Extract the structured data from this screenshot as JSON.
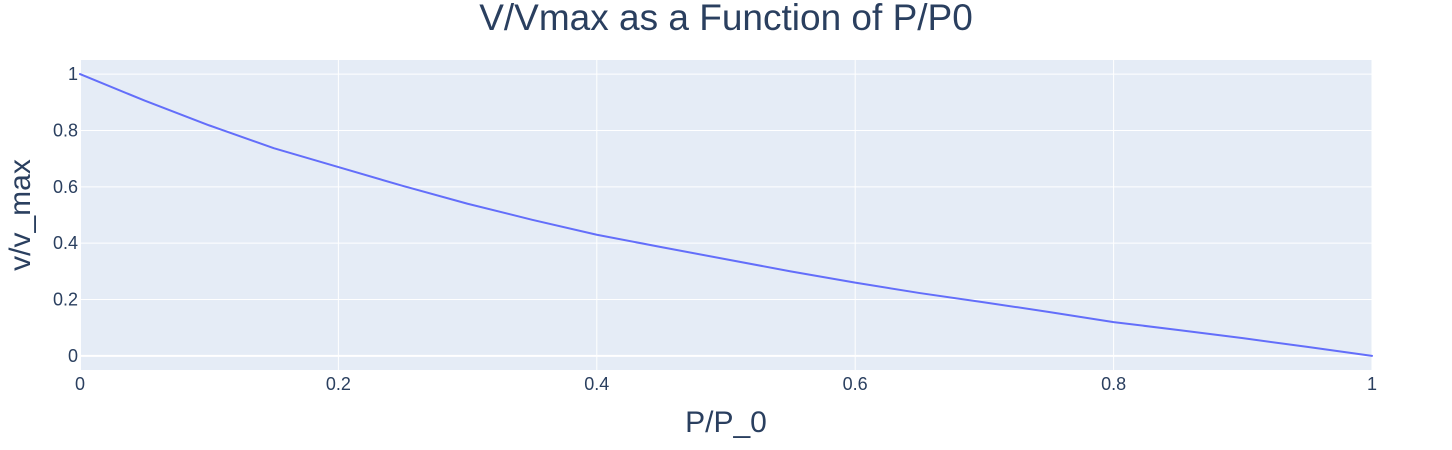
{
  "chart_data": {
    "type": "line",
    "title": "V/Vmax as a Function of P/P0",
    "xlabel": "P/P_0",
    "ylabel": "v/v_max",
    "xlim": [
      0,
      1
    ],
    "ylim": [
      -0.05,
      1.05
    ],
    "x_ticks": [
      0,
      0.2,
      0.4,
      0.6,
      0.8,
      1
    ],
    "x_tick_labels": [
      "0",
      "0.2",
      "0.4",
      "0.6",
      "0.8",
      "1"
    ],
    "y_ticks": [
      0,
      0.2,
      0.4,
      0.6,
      0.8,
      1
    ],
    "y_tick_labels": [
      "0",
      "0.2",
      "0.4",
      "0.6",
      "0.8",
      "1"
    ],
    "grid": true,
    "plot_background": "#e5ecf6",
    "grid_color": "#ffffff",
    "text_color": "#2a3f5f",
    "series": [
      {
        "color": "#636efa",
        "x": [
          0,
          0.05,
          0.1,
          0.15,
          0.2,
          0.25,
          0.3,
          0.35,
          0.4,
          0.45,
          0.5,
          0.55,
          0.6,
          0.65,
          0.7,
          0.75,
          0.8,
          0.85,
          0.9,
          0.95,
          1
        ],
        "y": [
          1,
          0.906,
          0.818,
          0.737,
          0.67,
          0.603,
          0.54,
          0.483,
          0.43,
          0.386,
          0.343,
          0.3,
          0.26,
          0.223,
          0.19,
          0.156,
          0.12,
          0.092,
          0.063,
          0.032,
          0
        ]
      }
    ]
  }
}
